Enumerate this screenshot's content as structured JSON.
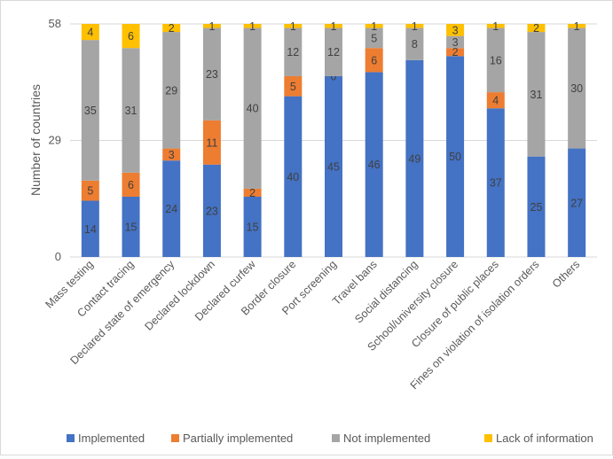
{
  "chart_data": {
    "type": "bar",
    "stacked": true,
    "ylabel": "Number of countries",
    "xlabel": "",
    "yticks": [
      0,
      29,
      58
    ],
    "ylim": [
      0,
      58
    ],
    "grid": true,
    "legend_position": "bottom",
    "categories": [
      "Mass testing",
      "Contact tracing",
      "Declared state of emergency",
      "Declared lockdown",
      "Declared curfew",
      "Border closure",
      "Port screening",
      "Travel bans",
      "Social distancing",
      "School/university closure",
      "Closure of public places",
      "Fines on violation of isolation orders",
      "Others"
    ],
    "series": [
      {
        "name": "Implemented",
        "color": "#4472c4",
        "values": [
          14,
          15,
          24,
          23,
          15,
          40,
          45,
          46,
          49,
          50,
          37,
          25,
          27
        ],
        "labels": [
          "14",
          "15",
          "24",
          "23",
          "15",
          "40",
          "45",
          "46",
          "49",
          "50",
          "37",
          "25",
          "27"
        ]
      },
      {
        "name": "Partially implemented",
        "color": "#ed7d31",
        "values": [
          5,
          6,
          3,
          11,
          2,
          5,
          0,
          6,
          0,
          2,
          4,
          0,
          0
        ],
        "labels": [
          "5",
          "6",
          "3",
          "11",
          "2",
          "5",
          "0",
          "6",
          "",
          "2",
          "4",
          "",
          ""
        ]
      },
      {
        "name": "Not implemented",
        "color": "#a5a5a5",
        "values": [
          35,
          31,
          29,
          23,
          40,
          12,
          12,
          5,
          8,
          3,
          16,
          31,
          30
        ],
        "labels": [
          "35",
          "31",
          "29",
          "23",
          "40",
          "12",
          "12",
          "5",
          "8",
          "3",
          "16",
          "31",
          "30"
        ]
      },
      {
        "name": "Lack of information",
        "color": "#ffc000",
        "values": [
          4,
          6,
          2,
          1,
          1,
          1,
          1,
          1,
          1,
          3,
          1,
          2,
          1
        ],
        "labels": [
          "4",
          "6",
          "2",
          "1",
          "1",
          "1",
          "1",
          "1",
          "1",
          "3",
          "1",
          "2",
          "1"
        ]
      }
    ]
  }
}
